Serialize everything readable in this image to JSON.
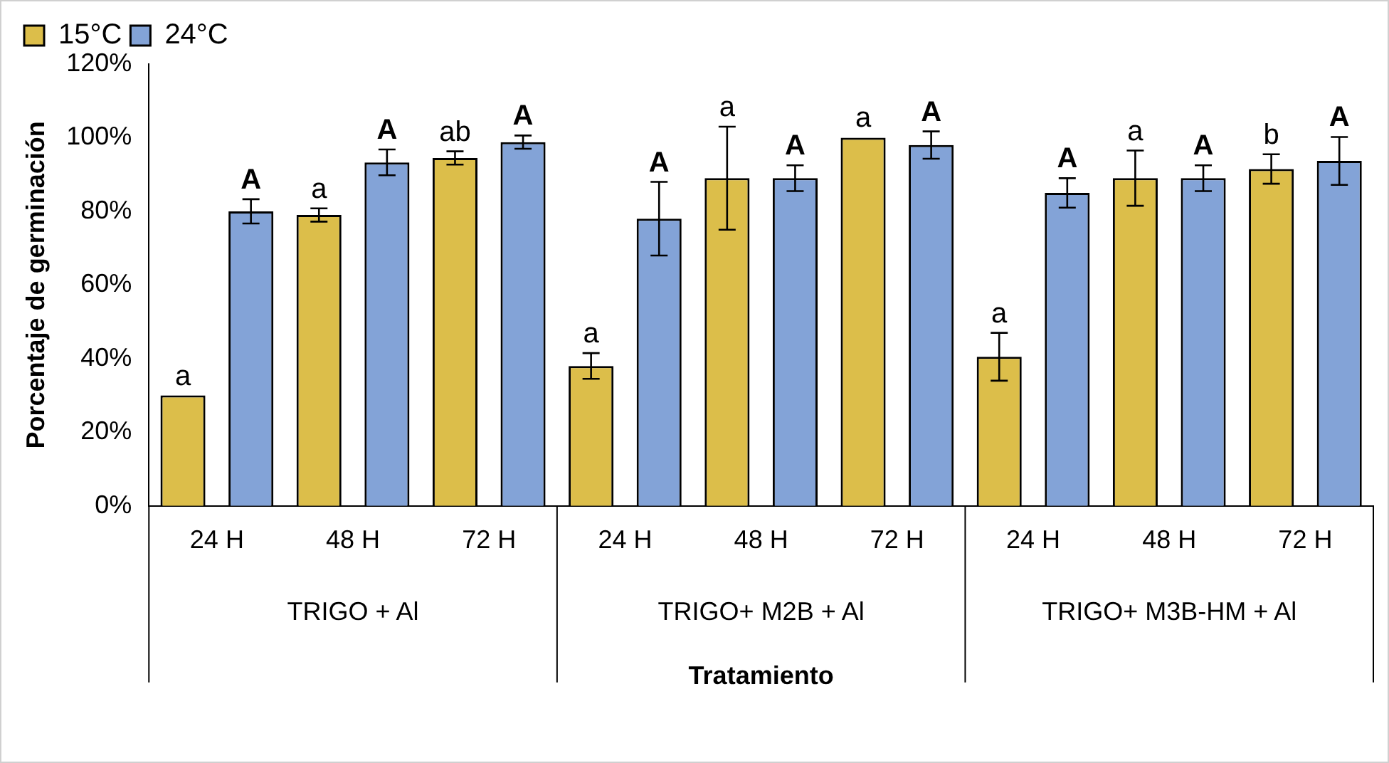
{
  "chart_data": {
    "type": "bar",
    "xlabel": "Tratamiento",
    "ylabel": "Porcentaje de germinación",
    "categories": [
      "24 H",
      "48 H",
      "72 H",
      "24 H",
      "48 H",
      "72 H",
      "24 H",
      "48 H",
      "72 H"
    ],
    "series": [
      {
        "name": "15°C",
        "color": "#dcbe4a",
        "values": [
          30,
          79,
          94.5,
          38,
          89,
          100,
          40.5,
          89,
          91.5
        ],
        "errors": [
          null,
          1.8,
          1.8,
          3.5,
          14,
          null,
          6.5,
          7.5,
          4
        ],
        "value_labels": [
          "a",
          "a",
          "ab",
          "a",
          "a",
          "a",
          "a",
          "a",
          "b"
        ]
      },
      {
        "name": "24°C",
        "color": "#83a3d7",
        "values": [
          80,
          93.3,
          98.8,
          78,
          89,
          98,
          85,
          89,
          93.7
        ],
        "errors": [
          3.3,
          3.5,
          1.8,
          10,
          3.5,
          3.7,
          4,
          3.5,
          6.5
        ],
        "value_labels": [
          "A",
          "A",
          "A",
          "A",
          "A",
          "A",
          "A",
          "A",
          "A"
        ]
      }
    ],
    "annotations": [
      "TRIGO + Al",
      "TRIGO+ M2B + Al",
      "TRIGO+ M3B-HM + Al"
    ],
    "ylim": [
      0,
      120
    ],
    "yticks": [
      {
        "value": 0,
        "label": "0%"
      },
      {
        "value": 20,
        "label": "20%"
      },
      {
        "value": 40,
        "label": "40%"
      },
      {
        "value": 60,
        "label": "60%"
      },
      {
        "value": 80,
        "label": "80%"
      },
      {
        "value": 100,
        "label": "100%"
      },
      {
        "value": 120,
        "label": "120%"
      }
    ],
    "grid": false,
    "legend": "top left"
  }
}
